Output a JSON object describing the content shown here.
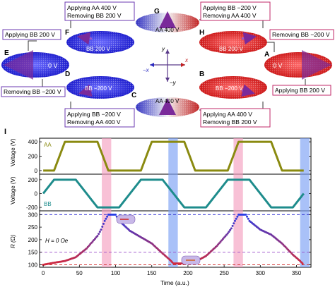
{
  "states": {
    "A": {
      "letter": "A",
      "inner": "0 V"
    },
    "B": {
      "letter": "B",
      "inner": "BB −200 V"
    },
    "C": {
      "letter": "C",
      "inner": "AA 400 V"
    },
    "D": {
      "letter": "D",
      "inner": "BB −200 V"
    },
    "E": {
      "letter": "E",
      "inner": "0 V"
    },
    "F": {
      "letter": "F",
      "inner": "BB 200 V"
    },
    "G": {
      "letter": "G",
      "inner": "AA 400 V"
    },
    "H": {
      "letter": "H",
      "inner": "BB 200 V"
    }
  },
  "boxes": {
    "top_left": [
      "Applying AA 400 V",
      "Removing BB 200 V"
    ],
    "left_upper": [
      "Applying BB 200 V"
    ],
    "top_right": [
      "Applying BB −200 V",
      "Removing AA 400 V"
    ],
    "right_upper": [
      "Removing BB −200 V"
    ],
    "left_lower": [
      "Removing BB −200 V"
    ],
    "right_lower": [
      "Applying BB 200 V"
    ],
    "bottom_left": [
      "Applying BB −200 V",
      "Removing AA 400 V"
    ],
    "bottom_right": [
      "Applying AA 400 V",
      "Removing BB 200 V"
    ]
  },
  "axes_labels": {
    "y_up": "y",
    "x_pos": "x",
    "x_neg": "−x",
    "y_down": "−y"
  },
  "panel_letter": "I",
  "chart_data": [
    {
      "type": "line",
      "ylabel": "Voltage (V)",
      "legend": "AA",
      "color": "#8a8a10",
      "ylim": [
        -50,
        450
      ],
      "yticks": [
        0,
        200,
        400
      ],
      "x": [
        0,
        15,
        30,
        45,
        60,
        75,
        90,
        105,
        120,
        135,
        150,
        165,
        180,
        195,
        210,
        225,
        240,
        255,
        270,
        285,
        300,
        315,
        330,
        345,
        360
      ],
      "values": [
        0,
        0,
        400,
        400,
        400,
        400,
        0,
        0,
        0,
        0,
        400,
        400,
        400,
        400,
        0,
        0,
        0,
        0,
        400,
        400,
        400,
        400,
        0,
        0,
        0
      ]
    },
    {
      "type": "line",
      "ylabel": "Voltage (V)",
      "legend": "BB",
      "color": "#1e8c8c",
      "ylim": [
        -250,
        280
      ],
      "yticks": [
        -200,
        0,
        200
      ],
      "x": [
        0,
        15,
        30,
        45,
        60,
        75,
        90,
        105,
        120,
        135,
        150,
        165,
        180,
        195,
        210,
        225,
        240,
        255,
        270,
        285,
        300,
        315,
        330,
        345,
        360
      ],
      "values": [
        0,
        200,
        200,
        200,
        0,
        -200,
        -200,
        -200,
        0,
        200,
        200,
        200,
        0,
        -200,
        -200,
        -200,
        0,
        200,
        200,
        200,
        0,
        -200,
        -200,
        -200,
        0
      ]
    },
    {
      "type": "scatter",
      "ylabel": "R (Ω)",
      "xlabel": "Time (a.u.)",
      "annotation": "H = 0 Oe",
      "ylim": [
        90,
        315
      ],
      "yticks": [
        100,
        150,
        200,
        250,
        300
      ],
      "xlim": [
        -5,
        370
      ],
      "xticks": [
        0,
        50,
        100,
        150,
        200,
        250,
        300,
        350
      ],
      "x": [
        0,
        15,
        30,
        45,
        60,
        75,
        80,
        85,
        90,
        100,
        105,
        120,
        135,
        150,
        165,
        175,
        180,
        195,
        210,
        225,
        240,
        255,
        260,
        265,
        270,
        280,
        285,
        300,
        315,
        330,
        345,
        355,
        360
      ],
      "values": [
        100,
        108,
        115,
        130,
        165,
        215,
        240,
        275,
        300,
        300,
        275,
        235,
        210,
        185,
        145,
        120,
        105,
        105,
        112,
        135,
        175,
        225,
        245,
        275,
        300,
        300,
        275,
        240,
        220,
        185,
        140,
        115,
        100
      ],
      "hlines": [
        {
          "y": 300,
          "color": "#2323d0"
        },
        {
          "y": 150,
          "color": "#9a4ac8"
        },
        {
          "y": 100,
          "color": "#d02020"
        }
      ]
    }
  ],
  "shaded_regions": [
    {
      "x0": 81,
      "x1": 94,
      "color": "#f5a0c0"
    },
    {
      "x0": 173,
      "x1": 186,
      "color": "#7b9ff5"
    },
    {
      "x0": 263,
      "x1": 276,
      "color": "#f5a0c0"
    },
    {
      "x0": 355,
      "x1": 368,
      "color": "#7b9ff5"
    }
  ]
}
